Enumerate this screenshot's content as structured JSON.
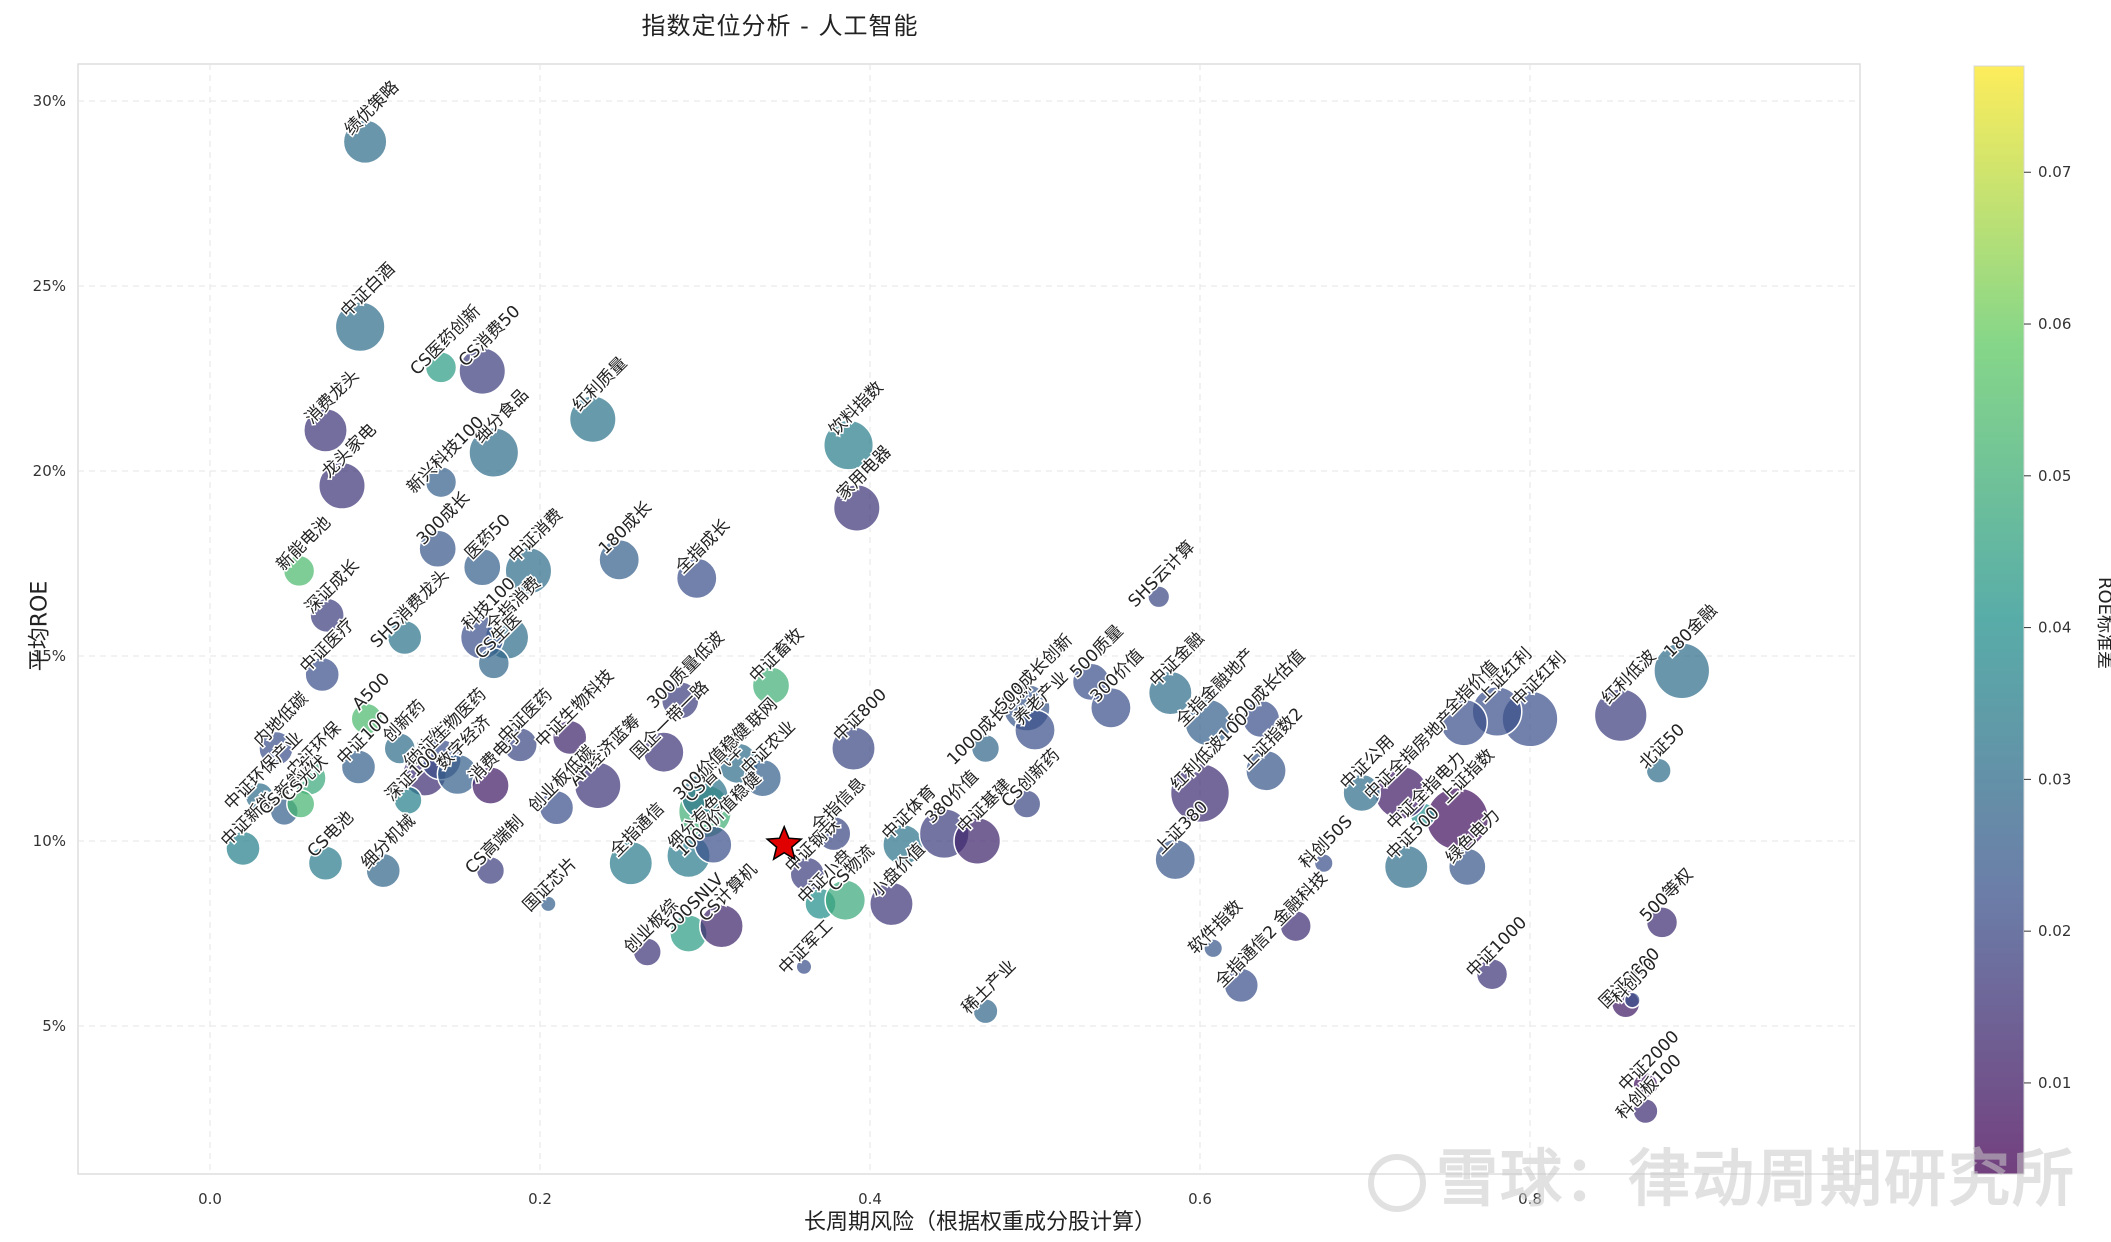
{
  "chart_data": {
    "type": "scatter",
    "title": "指数定位分析 - 人工智能",
    "xlabel": "长周期风险（根据权重成分股计算）",
    "ylabel": "平均ROE",
    "colorbar_label": "ROE标准差",
    "xlim": [
      -0.08,
      1.0
    ],
    "ylim": [
      0.01,
      0.31
    ],
    "x_ticks": [
      "0.0",
      "0.2",
      "0.4",
      "0.6",
      "0.8"
    ],
    "x_tick_values": [
      0.0,
      0.2,
      0.4,
      0.6,
      0.8
    ],
    "y_ticks": [
      "5%",
      "10%",
      "15%",
      "20%",
      "25%",
      "30%"
    ],
    "y_tick_values": [
      0.05,
      0.1,
      0.15,
      0.2,
      0.25,
      0.3
    ],
    "colorbar_ticks": [
      "0.01",
      "0.02",
      "0.03",
      "0.04",
      "0.05",
      "0.06",
      "0.07"
    ],
    "colorbar_tick_values": [
      0.01,
      0.02,
      0.03,
      0.04,
      0.05,
      0.06,
      0.07
    ],
    "colorbar_range": [
      0.004,
      0.077
    ],
    "colormap": [
      "#440154",
      "#3b528b",
      "#21918c",
      "#5ec962",
      "#fde725"
    ],
    "grid": true,
    "highlight": {
      "x": 0.348,
      "y": 0.099,
      "marker": "star",
      "color": "#e00000"
    },
    "points": [
      {
        "label": "绩优策略",
        "x": 0.094,
        "y": 0.289,
        "std": 0.03,
        "size": 14
      },
      {
        "label": "中证白酒",
        "x": 0.091,
        "y": 0.239,
        "std": 0.03,
        "size": 16
      },
      {
        "label": "CS医药创新",
        "x": 0.14,
        "y": 0.228,
        "std": 0.044,
        "size": 10
      },
      {
        "label": "CS消费50",
        "x": 0.165,
        "y": 0.227,
        "std": 0.018,
        "size": 15
      },
      {
        "label": "消费龙头",
        "x": 0.07,
        "y": 0.211,
        "std": 0.016,
        "size": 14
      },
      {
        "label": "细分食品",
        "x": 0.172,
        "y": 0.205,
        "std": 0.03,
        "size": 16
      },
      {
        "label": "红利质量",
        "x": 0.232,
        "y": 0.214,
        "std": 0.032,
        "size": 15
      },
      {
        "label": "饮料指数",
        "x": 0.387,
        "y": 0.207,
        "std": 0.035,
        "size": 16
      },
      {
        "label": "龙头家电",
        "x": 0.08,
        "y": 0.196,
        "std": 0.016,
        "size": 15
      },
      {
        "label": "新兴科技100",
        "x": 0.14,
        "y": 0.197,
        "std": 0.026,
        "size": 10
      },
      {
        "label": "家用电器",
        "x": 0.392,
        "y": 0.19,
        "std": 0.016,
        "size": 15
      },
      {
        "label": "300成长",
        "x": 0.138,
        "y": 0.179,
        "std": 0.024,
        "size": 12
      },
      {
        "label": "新能电池",
        "x": 0.054,
        "y": 0.173,
        "std": 0.054,
        "size": 10
      },
      {
        "label": "医药50",
        "x": 0.165,
        "y": 0.174,
        "std": 0.026,
        "size": 12
      },
      {
        "label": "中证消费",
        "x": 0.193,
        "y": 0.173,
        "std": 0.03,
        "size": 15
      },
      {
        "label": "180成长",
        "x": 0.248,
        "y": 0.176,
        "std": 0.026,
        "size": 13
      },
      {
        "label": "全指成长",
        "x": 0.295,
        "y": 0.171,
        "std": 0.022,
        "size": 13
      },
      {
        "label": "深证成长",
        "x": 0.071,
        "y": 0.161,
        "std": 0.018,
        "size": 11
      },
      {
        "label": "SHS云计算",
        "x": 0.575,
        "y": 0.166,
        "std": 0.02,
        "size": 7
      },
      {
        "label": "中证医疗",
        "x": 0.068,
        "y": 0.145,
        "std": 0.022,
        "size": 11
      },
      {
        "label": "全指消费",
        "x": 0.18,
        "y": 0.155,
        "std": 0.03,
        "size": 14
      },
      {
        "label": "SHS消费龙头",
        "x": 0.118,
        "y": 0.155,
        "std": 0.032,
        "size": 11
      },
      {
        "label": "300质量低波",
        "x": 0.285,
        "y": 0.138,
        "std": 0.018,
        "size": 12
      },
      {
        "label": "中证畜牧",
        "x": 0.34,
        "y": 0.142,
        "std": 0.05,
        "size": 12
      },
      {
        "label": "500质量",
        "x": 0.534,
        "y": 0.143,
        "std": 0.022,
        "size": 12
      },
      {
        "label": "300价值",
        "x": 0.546,
        "y": 0.136,
        "std": 0.022,
        "size": 13
      },
      {
        "label": "中证金融",
        "x": 0.582,
        "y": 0.14,
        "std": 0.03,
        "size": 14
      },
      {
        "label": "全指金融地产",
        "x": 0.605,
        "y": 0.132,
        "std": 0.026,
        "size": 15
      },
      {
        "label": "500成长估值",
        "x": 0.637,
        "y": 0.133,
        "std": 0.022,
        "size": 12
      },
      {
        "label": "180金融",
        "x": 0.892,
        "y": 0.146,
        "std": 0.03,
        "size": 18
      },
      {
        "label": "红利低波",
        "x": 0.855,
        "y": 0.134,
        "std": 0.018,
        "size": 17
      },
      {
        "label": "中证红利",
        "x": 0.8,
        "y": 0.133,
        "std": 0.022,
        "size": 18
      },
      {
        "label": "上证红利",
        "x": 0.78,
        "y": 0.135,
        "std": 0.022,
        "size": 16
      },
      {
        "label": "全指价值",
        "x": 0.76,
        "y": 0.132,
        "std": 0.022,
        "size": 15
      },
      {
        "label": "北证50",
        "x": 0.878,
        "y": 0.119,
        "std": 0.03,
        "size": 8
      },
      {
        "label": "科技100",
        "x": 0.165,
        "y": 0.155,
        "std": 0.022,
        "size": 14
      },
      {
        "label": "CS生医",
        "x": 0.172,
        "y": 0.148,
        "std": 0.028,
        "size": 10
      },
      {
        "label": "中证环保",
        "x": 0.06,
        "y": 0.117,
        "std": 0.048,
        "size": 11
      },
      {
        "label": "内地低碳",
        "x": 0.04,
        "y": 0.125,
        "std": 0.022,
        "size": 11
      },
      {
        "label": "中证新能",
        "x": 0.02,
        "y": 0.098,
        "std": 0.036,
        "size": 11
      },
      {
        "label": "CS电池",
        "x": 0.07,
        "y": 0.094,
        "std": 0.034,
        "size": 11
      },
      {
        "label": "细分机械",
        "x": 0.105,
        "y": 0.092,
        "std": 0.028,
        "size": 11
      },
      {
        "label": "CS高端制",
        "x": 0.17,
        "y": 0.092,
        "std": 0.018,
        "size": 9
      },
      {
        "label": "国证芯片",
        "x": 0.205,
        "y": 0.083,
        "std": 0.026,
        "size": 5
      },
      {
        "label": "AH经济蓝筹",
        "x": 0.235,
        "y": 0.115,
        "std": 0.016,
        "size": 15
      },
      {
        "label": "创业板低碳",
        "x": 0.21,
        "y": 0.109,
        "std": 0.022,
        "size": 11
      },
      {
        "label": "国企一带一路",
        "x": 0.275,
        "y": 0.124,
        "std": 0.016,
        "size": 13
      },
      {
        "label": "全指通信",
        "x": 0.255,
        "y": 0.094,
        "std": 0.034,
        "size": 14
      },
      {
        "label": "创业板综",
        "x": 0.265,
        "y": 0.07,
        "std": 0.016,
        "size": 9
      },
      {
        "label": "500SNLV",
        "x": 0.29,
        "y": 0.075,
        "std": 0.044,
        "size": 12
      },
      {
        "label": "CS计算机",
        "x": 0.31,
        "y": 0.077,
        "std": 0.012,
        "size": 14
      },
      {
        "label": "中证军工",
        "x": 0.36,
        "y": 0.066,
        "std": 0.022,
        "size": 5
      },
      {
        "label": "中证小盘",
        "x": 0.37,
        "y": 0.083,
        "std": 0.04,
        "size": 10
      },
      {
        "label": "小盘价值",
        "x": 0.413,
        "y": 0.083,
        "std": 0.016,
        "size": 14
      },
      {
        "label": "中证体育",
        "x": 0.42,
        "y": 0.099,
        "std": 0.032,
        "size": 13
      },
      {
        "label": "中证800",
        "x": 0.39,
        "y": 0.125,
        "std": 0.02,
        "size": 14
      },
      {
        "label": "CS物流",
        "x": 0.385,
        "y": 0.084,
        "std": 0.048,
        "size": 13
      },
      {
        "label": "380价值",
        "x": 0.445,
        "y": 0.102,
        "std": 0.018,
        "size": 16
      },
      {
        "label": "中证基建",
        "x": 0.465,
        "y": 0.1,
        "std": 0.012,
        "size": 15
      },
      {
        "label": "CS创新药",
        "x": 0.495,
        "y": 0.11,
        "std": 0.02,
        "size": 9
      },
      {
        "label": "1000成长创新",
        "x": 0.47,
        "y": 0.125,
        "std": 0.028,
        "size": 9
      },
      {
        "label": "500成长创新",
        "x": 0.495,
        "y": 0.136,
        "std": 0.024,
        "size": 15
      },
      {
        "label": "养老产业",
        "x": 0.5,
        "y": 0.13,
        "std": 0.022,
        "size": 13
      },
      {
        "label": "稀土产业",
        "x": 0.47,
        "y": 0.054,
        "std": 0.028,
        "size": 8
      },
      {
        "label": "中证2000",
        "x": 0.87,
        "y": 0.034,
        "std": 0.008,
        "size": 8
      },
      {
        "label": "科创板100",
        "x": 0.87,
        "y": 0.027,
        "std": 0.014,
        "size": 8
      },
      {
        "label": "国证2000",
        "x": 0.858,
        "y": 0.056,
        "std": 0.01,
        "size": 9
      },
      {
        "label": "科创50",
        "x": 0.862,
        "y": 0.057,
        "std": 0.022,
        "size": 5
      },
      {
        "label": "500等权",
        "x": 0.88,
        "y": 0.078,
        "std": 0.014,
        "size": 10
      },
      {
        "label": "中证1000",
        "x": 0.777,
        "y": 0.064,
        "std": 0.016,
        "size": 10
      },
      {
        "label": "绿色电力",
        "x": 0.762,
        "y": 0.093,
        "std": 0.024,
        "size": 12
      },
      {
        "label": "上证指数",
        "x": 0.756,
        "y": 0.106,
        "std": 0.008,
        "size": 20
      },
      {
        "label": "中证全指电力",
        "x": 0.735,
        "y": 0.107,
        "std": 0.04,
        "size": 8
      },
      {
        "label": "中证全指房地产",
        "x": 0.722,
        "y": 0.113,
        "std": 0.01,
        "size": 17
      },
      {
        "label": "中证公用",
        "x": 0.698,
        "y": 0.113,
        "std": 0.03,
        "size": 12
      },
      {
        "label": "中证500",
        "x": 0.725,
        "y": 0.093,
        "std": 0.03,
        "size": 14
      },
      {
        "label": "科创50S",
        "x": 0.675,
        "y": 0.094,
        "std": 0.022,
        "size": 6
      },
      {
        "label": "上证380",
        "x": 0.585,
        "y": 0.095,
        "std": 0.024,
        "size": 13
      },
      {
        "label": "红利低波100",
        "x": 0.6,
        "y": 0.113,
        "std": 0.014,
        "size": 19
      },
      {
        "label": "上证指数2",
        "x": 0.64,
        "y": 0.119,
        "std": 0.024,
        "size": 13
      },
      {
        "label": "金融科技",
        "x": 0.658,
        "y": 0.077,
        "std": 0.014,
        "size": 10
      },
      {
        "label": "软件指数",
        "x": 0.608,
        "y": 0.071,
        "std": 0.024,
        "size": 6
      },
      {
        "label": "全指通信2",
        "x": 0.625,
        "y": 0.061,
        "std": 0.022,
        "size": 11
      },
      {
        "label": "中证环保产业",
        "x": 0.03,
        "y": 0.112,
        "std": 0.03,
        "size": 9
      },
      {
        "label": "CS新能车",
        "x": 0.045,
        "y": 0.108,
        "std": 0.026,
        "size": 9
      },
      {
        "label": "CS光伏",
        "x": 0.055,
        "y": 0.11,
        "std": 0.052,
        "size": 9
      },
      {
        "label": "中证100",
        "x": 0.09,
        "y": 0.12,
        "std": 0.026,
        "size": 11
      },
      {
        "label": "细分化工",
        "x": 0.13,
        "y": 0.118,
        "std": 0.014,
        "size": 14
      },
      {
        "label": "创新药",
        "x": 0.115,
        "y": 0.125,
        "std": 0.03,
        "size": 10
      },
      {
        "label": "中证生物医药",
        "x": 0.14,
        "y": 0.122,
        "std": 0.022,
        "size": 13
      },
      {
        "label": "数字经济",
        "x": 0.15,
        "y": 0.118,
        "std": 0.026,
        "size": 13
      },
      {
        "label": "消费电子",
        "x": 0.17,
        "y": 0.115,
        "std": 0.01,
        "size": 12
      },
      {
        "label": "中证医药",
        "x": 0.188,
        "y": 0.126,
        "std": 0.02,
        "size": 11
      },
      {
        "label": "深证100",
        "x": 0.12,
        "y": 0.111,
        "std": 0.036,
        "size": 9
      },
      {
        "label": "A500",
        "x": 0.095,
        "y": 0.133,
        "std": 0.054,
        "size": 10
      },
      {
        "label": "SHS互联网",
        "x": 0.32,
        "y": 0.121,
        "std": 0.03,
        "size": 13
      },
      {
        "label": "CS智汽车",
        "x": 0.3,
        "y": 0.108,
        "std": 0.05,
        "size": 17
      },
      {
        "label": "300价值稳健",
        "x": 0.3,
        "y": 0.112,
        "std": 0.032,
        "size": 15
      },
      {
        "label": "中证农业",
        "x": 0.335,
        "y": 0.117,
        "std": 0.026,
        "size": 12
      },
      {
        "label": "细分有色",
        "x": 0.29,
        "y": 0.096,
        "std": 0.034,
        "size": 14
      },
      {
        "label": "1000价值稳健",
        "x": 0.305,
        "y": 0.099,
        "std": 0.022,
        "size": 12
      },
      {
        "label": "中证钢铁",
        "x": 0.362,
        "y": 0.091,
        "std": 0.018,
        "size": 11
      },
      {
        "label": "全指信息",
        "x": 0.378,
        "y": 0.102,
        "std": 0.02,
        "size": 11
      },
      {
        "label": "中证生物科技",
        "x": 0.218,
        "y": 0.128,
        "std": 0.012,
        "size": 11
      }
    ]
  }
}
